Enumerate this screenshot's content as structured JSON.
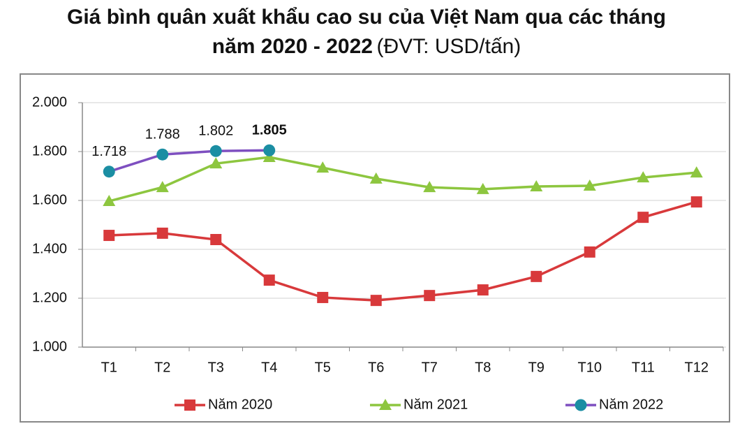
{
  "chart_data": {
    "type": "line",
    "title": [
      "Giá bình quân xuất khẩu cao su của Việt Nam qua các tháng",
      "năm 2020 - 2022"
    ],
    "subtitle": "(ĐVT: USD/tấn)",
    "categories": [
      "T1",
      "T2",
      "T3",
      "T4",
      "T5",
      "T6",
      "T7",
      "T8",
      "T9",
      "T10",
      "T11",
      "T12"
    ],
    "series": [
      {
        "name": "Năm 2020",
        "color": "#d8393b",
        "marker": "square",
        "values": [
          1457,
          1466,
          1440,
          1274,
          1203,
          1191,
          1211,
          1234,
          1289,
          1389,
          1531,
          1594
        ]
      },
      {
        "name": "Năm 2021",
        "color": "#8dc63f",
        "marker": "triangle",
        "values": [
          1597,
          1654,
          1751,
          1777,
          1734,
          1689,
          1654,
          1646,
          1657,
          1660,
          1694,
          1714
        ]
      },
      {
        "name": "Năm 2022",
        "color": "#7e4fc0",
        "marker": "circle",
        "marker_color": "#1b8ea3",
        "values": [
          1718,
          1788,
          1802,
          1805,
          null,
          null,
          null,
          null,
          null,
          null,
          null,
          null
        ],
        "value_labels": [
          "1.718",
          "1.788",
          "1.802",
          "1.805",
          null,
          null,
          null,
          null,
          null,
          null,
          null,
          null
        ]
      }
    ],
    "ylim": [
      1000,
      2000
    ],
    "yticks": [
      {
        "value": 1000,
        "label": "1.000"
      },
      {
        "value": 1200,
        "label": "1.200"
      },
      {
        "value": 1400,
        "label": "1.400"
      },
      {
        "value": 1600,
        "label": "1.600"
      },
      {
        "value": 1800,
        "label": "1.800"
      },
      {
        "value": 2000,
        "label": "2.000"
      }
    ],
    "grid": true,
    "legend": "bottom"
  }
}
